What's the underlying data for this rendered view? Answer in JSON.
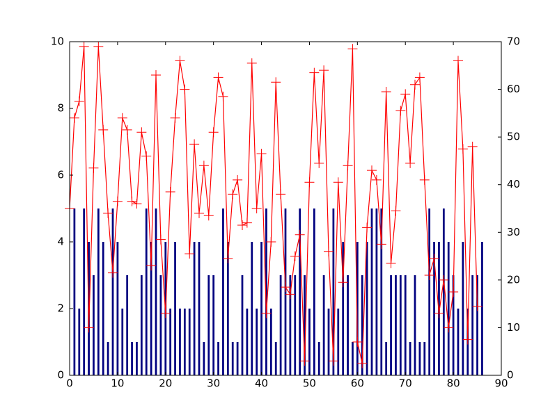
{
  "chart_data": {
    "type": "bar-line",
    "xlim": [
      0,
      90
    ],
    "xticks": [
      0,
      10,
      20,
      30,
      40,
      50,
      60,
      70,
      80,
      90
    ],
    "ylim": [
      0,
      10
    ],
    "yticks": [
      0,
      2,
      4,
      6,
      8,
      10
    ],
    "y2lim": [
      0,
      70
    ],
    "y2ticks": [
      0,
      10,
      20,
      30,
      40,
      50,
      60,
      70
    ],
    "grid": false,
    "series": [
      {
        "type": "bar",
        "color": "#000080",
        "axis": "y",
        "x": [
          1,
          2,
          3,
          4,
          5,
          6,
          7,
          8,
          9,
          10,
          11,
          12,
          13,
          14,
          15,
          16,
          17,
          18,
          19,
          20,
          21,
          22,
          23,
          24,
          25,
          26,
          27,
          28,
          29,
          30,
          31,
          32,
          33,
          34,
          35,
          36,
          37,
          38,
          39,
          40,
          41,
          42,
          43,
          44,
          45,
          46,
          47,
          48,
          49,
          50,
          51,
          52,
          53,
          54,
          55,
          56,
          57,
          58,
          59,
          60,
          61,
          62,
          63,
          64,
          65,
          66,
          67,
          68,
          69,
          70,
          71,
          72,
          73,
          74,
          75,
          76,
          77,
          78,
          79,
          80,
          81,
          82,
          83,
          84,
          85,
          86
        ],
        "values": [
          5,
          2,
          5,
          4,
          3,
          5,
          4,
          1,
          5,
          4,
          2,
          3,
          1,
          1,
          3,
          5,
          4,
          5,
          3,
          4,
          2,
          4,
          2,
          2,
          2,
          4,
          4,
          1,
          3,
          3,
          1,
          5,
          4,
          1,
          1,
          3,
          2,
          4,
          2,
          4,
          5,
          2,
          1,
          3,
          5,
          3,
          3,
          5,
          3,
          2,
          5,
          1,
          3,
          2,
          5,
          2,
          4,
          3,
          1,
          4,
          3,
          4,
          5,
          5,
          5,
          1,
          3,
          3,
          3,
          3,
          1,
          3,
          1,
          1,
          5,
          4,
          4,
          5,
          4,
          3,
          2,
          4,
          2,
          3,
          3,
          4
        ]
      },
      {
        "type": "line",
        "color": "#ff0000",
        "axis": "y2",
        "x": [
          0,
          1,
          2,
          3,
          4,
          5,
          6,
          7,
          8,
          9,
          10,
          11,
          12,
          13,
          14,
          15,
          16,
          17,
          18,
          19,
          20,
          21,
          22,
          23,
          24,
          25,
          26,
          27,
          28,
          29,
          30,
          31,
          32,
          33,
          34,
          35,
          36,
          37,
          38,
          39,
          40,
          41,
          42,
          43,
          44,
          45,
          46,
          47,
          48,
          49,
          50,
          51,
          52,
          53,
          54,
          55,
          56,
          57,
          58,
          59,
          60,
          61,
          62,
          63,
          64,
          65,
          66,
          67,
          68,
          69,
          70,
          71,
          72,
          73,
          74,
          75,
          76,
          77,
          78,
          79,
          80,
          81,
          82,
          83,
          84,
          85
        ],
        "values": [
          35,
          54,
          57.5,
          69,
          10,
          43.5,
          69,
          51.5,
          34,
          21.5,
          36.5,
          54,
          51.5,
          36.5,
          36,
          51,
          46,
          23,
          63,
          28.5,
          13,
          38.5,
          54,
          66,
          60,
          25.5,
          48.5,
          34,
          44,
          33.5,
          51,
          62.5,
          58.5,
          24.5,
          38,
          41,
          31.5,
          32,
          65.5,
          35,
          46.5,
          13,
          28,
          61.5,
          38,
          18.5,
          17,
          25,
          29.5,
          3,
          40.5,
          63.5,
          44.5,
          64,
          26,
          3,
          40.5,
          19.5,
          44,
          68.5,
          7,
          2.5,
          31,
          43,
          41,
          27.5,
          59.5,
          23.5,
          34.5,
          55.5,
          59,
          44.5,
          61,
          62.5,
          41,
          21,
          24.5,
          13,
          20,
          10,
          17.5,
          66,
          47.5,
          7.5,
          48,
          14.5
        ]
      }
    ]
  }
}
